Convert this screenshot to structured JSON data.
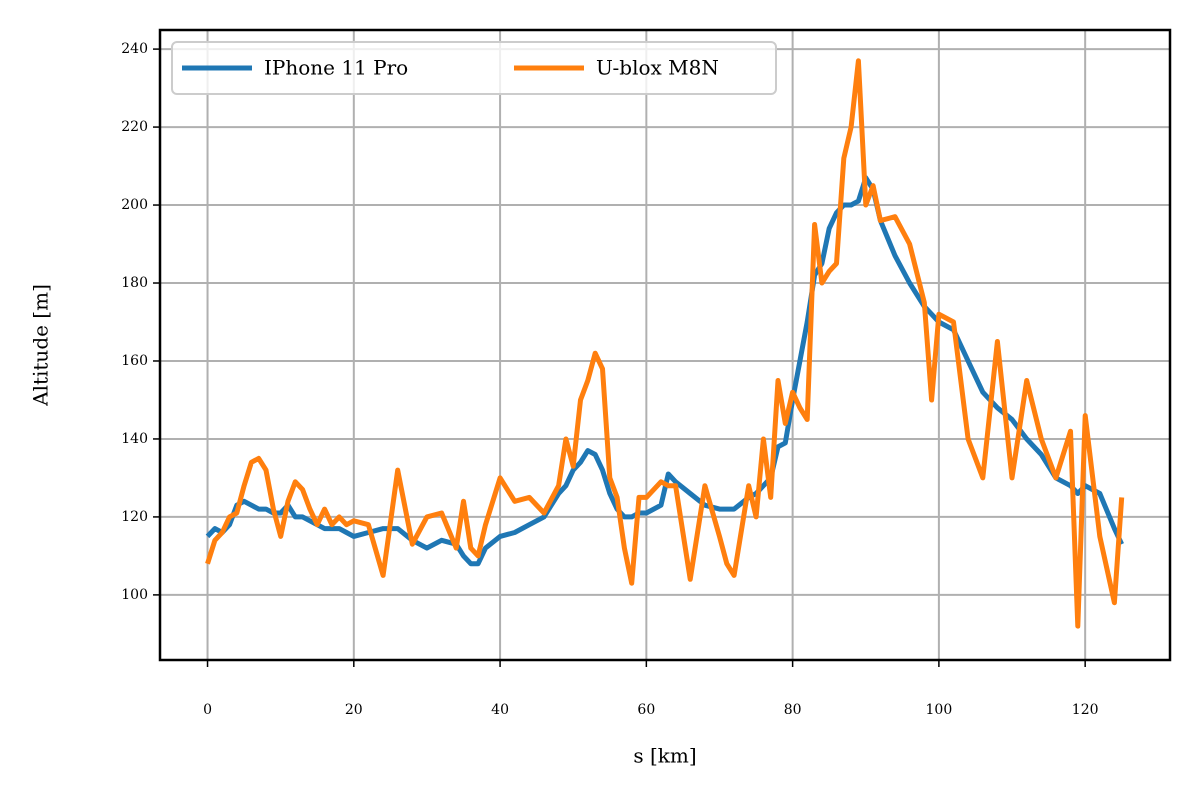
{
  "chart_data": {
    "type": "line",
    "xlabel": "s [km]",
    "ylabel": "Altitude [m]",
    "x": [
      0,
      1,
      2,
      3,
      4,
      5,
      6,
      7,
      8,
      9,
      10,
      11,
      12,
      13,
      14,
      15,
      16,
      17,
      18,
      19,
      20,
      22,
      24,
      26,
      28,
      30,
      32,
      34,
      35,
      36,
      37,
      38,
      40,
      42,
      44,
      46,
      48,
      49,
      50,
      51,
      52,
      53,
      54,
      55,
      56,
      57,
      58,
      59,
      60,
      62,
      63,
      64,
      66,
      68,
      70,
      71,
      72,
      74,
      75,
      76,
      77,
      78,
      79,
      80,
      81,
      82,
      83,
      84,
      85,
      86,
      87,
      88,
      89,
      90,
      91,
      92,
      94,
      96,
      98,
      99,
      100,
      102,
      104,
      106,
      108,
      110,
      112,
      114,
      116,
      118,
      119,
      120,
      122,
      124,
      125
    ],
    "series": [
      {
        "name": "IPhone 11 Pro",
        "color": "#1f77b4",
        "values": [
          115,
          117,
          116,
          118,
          123,
          124,
          123,
          122,
          122,
          121,
          121,
          123,
          120,
          120,
          119,
          118,
          117,
          117,
          117,
          116,
          115,
          116,
          117,
          117,
          114,
          112,
          114,
          113,
          110,
          108,
          108,
          112,
          115,
          116,
          118,
          120,
          126,
          128,
          132,
          134,
          137,
          136,
          132,
          126,
          122,
          120,
          120,
          121,
          121,
          123,
          131,
          129,
          126,
          123,
          122,
          122,
          122,
          125,
          126,
          128,
          130,
          138,
          139,
          150,
          160,
          170,
          182,
          185,
          194,
          198,
          200,
          200,
          201,
          207,
          204,
          196,
          187,
          180,
          174,
          172,
          170,
          168,
          160,
          152,
          148,
          145,
          140,
          136,
          130,
          128,
          126,
          128,
          126,
          117,
          113
        ]
      },
      {
        "name": "U-blox M8N",
        "color": "#ff7f0e",
        "values": [
          108,
          114,
          116,
          120,
          121,
          128,
          134,
          135,
          132,
          122,
          115,
          124,
          129,
          127,
          122,
          118,
          122,
          118,
          120,
          118,
          119,
          118,
          105,
          132,
          113,
          120,
          121,
          112,
          124,
          112,
          110,
          118,
          130,
          124,
          125,
          121,
          128,
          140,
          133,
          150,
          155,
          162,
          158,
          130,
          125,
          112,
          103,
          125,
          125,
          129,
          128,
          128,
          104,
          128,
          115,
          108,
          105,
          128,
          120,
          140,
          125,
          155,
          144,
          152,
          148,
          145,
          195,
          180,
          183,
          185,
          212,
          220,
          237,
          200,
          205,
          196,
          197,
          190,
          175,
          150,
          172,
          170,
          140,
          130,
          165,
          130,
          155,
          140,
          130,
          142,
          92,
          146,
          115,
          98,
          125
        ]
      }
    ],
    "xlim": [
      -6.5,
      131.6
    ],
    "ylim": [
      83.3,
      244.9
    ],
    "xticks": [
      0,
      20,
      40,
      60,
      80,
      100,
      120
    ],
    "yticks": [
      100,
      120,
      140,
      160,
      180,
      200,
      220,
      240
    ],
    "grid": true,
    "legend": "upper left"
  }
}
